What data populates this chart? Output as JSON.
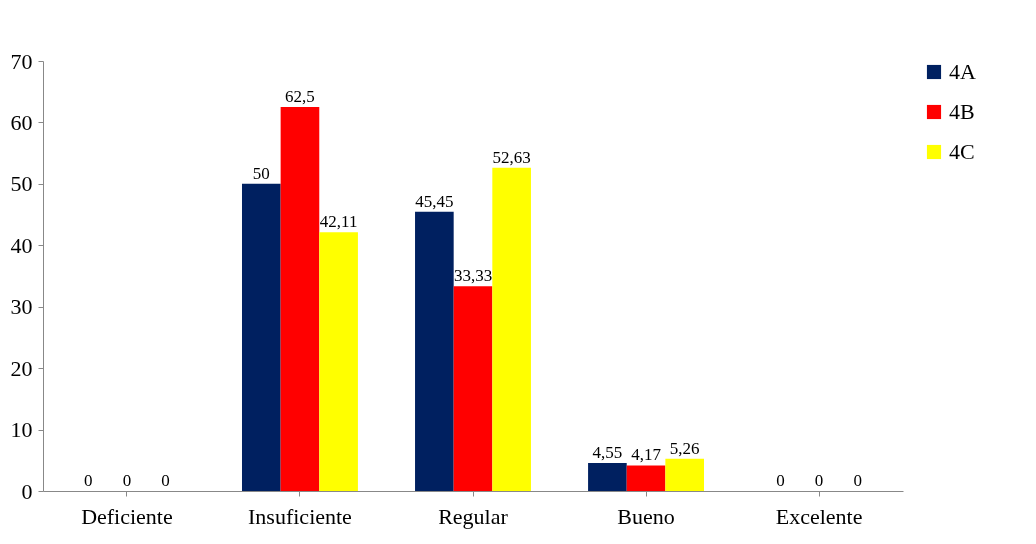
{
  "chart_data": {
    "type": "bar",
    "categories": [
      "Deficiente",
      "Insuficiente",
      "Regular",
      "Bueno",
      "Excelente"
    ],
    "series": [
      {
        "name": "4A",
        "color": "#002060",
        "values": [
          0,
          50,
          45.45,
          4.55,
          0
        ]
      },
      {
        "name": "4B",
        "color": "#ff0000",
        "values": [
          0,
          62.5,
          33.33,
          4.17,
          0
        ]
      },
      {
        "name": "4C",
        "color": "#ffff00",
        "values": [
          0,
          42.11,
          52.63,
          5.26,
          0
        ]
      }
    ],
    "value_labels": [
      [
        "0",
        "50",
        "45,45",
        "4,55",
        "0"
      ],
      [
        "0",
        "62,5",
        "33,33",
        "4,17",
        "0"
      ],
      [
        "0",
        "42,11",
        "52,63",
        "5,26",
        "0"
      ]
    ],
    "ylim": [
      0,
      70
    ],
    "yticks": [
      0,
      10,
      20,
      30,
      40,
      50,
      60,
      70
    ],
    "grid": false,
    "legend": "right"
  }
}
